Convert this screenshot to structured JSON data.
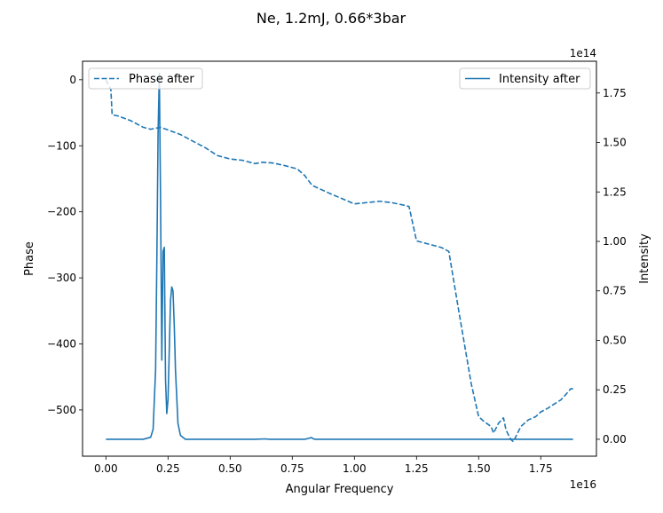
{
  "chart_data": {
    "type": "line",
    "title": "Ne, 1.2mJ, 0.66*3bar",
    "xlabel": "Angular Frequency",
    "x_offset_label": "1e16",
    "x_scale": 1e+16,
    "xlim": [
      -0.094,
      1.974
    ],
    "xticks": [
      0.0,
      0.25,
      0.5,
      0.75,
      1.0,
      1.25,
      1.5,
      1.75
    ],
    "xtick_labels": [
      "0.00",
      "0.25",
      "0.50",
      "0.75",
      "1.00",
      "1.25",
      "1.50",
      "1.75"
    ],
    "y_left": {
      "label": "Phase",
      "lim": [
        -570,
        28
      ],
      "ticks": [
        0,
        -100,
        -200,
        -300,
        -400,
        -500
      ],
      "tick_labels": [
        "0",
        "−100",
        "−200",
        "−300",
        "−400",
        "−500"
      ]
    },
    "y_right": {
      "label": "Intensity",
      "offset_label": "1e14",
      "scale": 100000000000000.0,
      "lim": [
        -0.0855,
        1.9105
      ],
      "ticks": [
        0.0,
        0.25,
        0.5,
        0.75,
        1.0,
        1.25,
        1.5,
        1.75
      ],
      "tick_labels": [
        "0.00",
        "0.25",
        "0.50",
        "0.75",
        "1.00",
        "1.25",
        "1.50",
        "1.75"
      ]
    },
    "color": "#1f77b4",
    "series": [
      {
        "name": "Phase after",
        "axis": "left",
        "style": "dashed",
        "legend_position": "upper left",
        "x": [
          0.0,
          0.02,
          0.025,
          0.05,
          0.1,
          0.15,
          0.18,
          0.22,
          0.25,
          0.3,
          0.35,
          0.4,
          0.45,
          0.5,
          0.55,
          0.6,
          0.63,
          0.67,
          0.72,
          0.77,
          0.8,
          0.83,
          0.9,
          0.95,
          1.0,
          1.05,
          1.1,
          1.15,
          1.2,
          1.22,
          1.25,
          1.3,
          1.35,
          1.38,
          1.42,
          1.47,
          1.5,
          1.52,
          1.55,
          1.56,
          1.58,
          1.6,
          1.61,
          1.62,
          1.63,
          1.64,
          1.65,
          1.67,
          1.7,
          1.73,
          1.75,
          1.78,
          1.8,
          1.83,
          1.85,
          1.87,
          1.88
        ],
        "y": [
          0,
          -15,
          -53,
          -55,
          -62,
          -72,
          -75,
          -72,
          -76,
          -83,
          -93,
          -103,
          -115,
          -120,
          -122,
          -127,
          -125,
          -126,
          -130,
          -135,
          -145,
          -160,
          -172,
          -180,
          -188,
          -186,
          -184,
          -186,
          -190,
          -192,
          -244,
          -249,
          -254,
          -260,
          -350,
          -460,
          -510,
          -517,
          -525,
          -535,
          -520,
          -512,
          -530,
          -538,
          -545,
          -548,
          -540,
          -525,
          -515,
          -510,
          -503,
          -497,
          -492,
          -485,
          -477,
          -468,
          -468
        ]
      },
      {
        "name": "Intensity after",
        "axis": "right",
        "style": "solid",
        "legend_position": "upper right",
        "x": [
          0.0,
          0.15,
          0.18,
          0.19,
          0.2,
          0.205,
          0.21,
          0.215,
          0.22,
          0.225,
          0.23,
          0.235,
          0.24,
          0.245,
          0.25,
          0.255,
          0.26,
          0.265,
          0.27,
          0.275,
          0.28,
          0.29,
          0.3,
          0.32,
          0.4,
          0.6,
          0.64,
          0.66,
          0.8,
          0.82,
          0.825,
          0.83,
          0.84,
          1.0,
          1.5,
          1.88
        ],
        "y": [
          0.0,
          0.0,
          0.01,
          0.05,
          0.35,
          0.9,
          1.55,
          1.85,
          1.2,
          0.4,
          0.95,
          0.97,
          0.3,
          0.13,
          0.2,
          0.45,
          0.7,
          0.77,
          0.75,
          0.58,
          0.35,
          0.08,
          0.02,
          0.0,
          0.0,
          0.0,
          0.002,
          0.0,
          0.0,
          0.006,
          0.009,
          0.006,
          0.0,
          0.0,
          0.0,
          0.0
        ]
      }
    ]
  }
}
